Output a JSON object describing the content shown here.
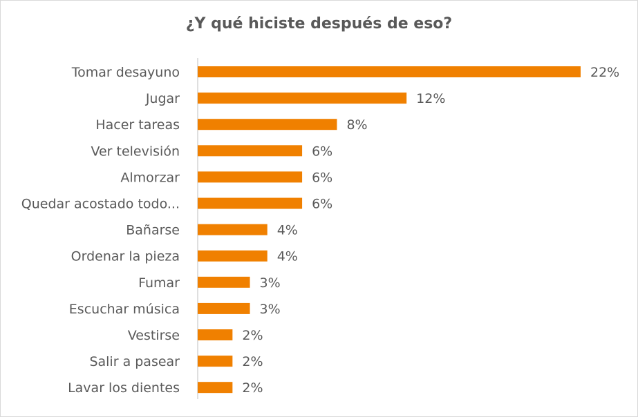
{
  "chart_data": {
    "type": "bar",
    "orientation": "horizontal",
    "title": "¿Y qué hiciste después de eso?",
    "categories": [
      "Tomar desayuno",
      "Jugar",
      "Hacer tareas",
      "Ver televisión",
      "Almorzar",
      "Quedar acostado todo...",
      "Bañarse",
      "Ordenar la pieza",
      "Fumar",
      "Escuchar música",
      "Vestirse",
      "Salir a pasear",
      "Lavar los dientes"
    ],
    "values": [
      22,
      12,
      8,
      6,
      6,
      6,
      4,
      4,
      3,
      3,
      2,
      2,
      2
    ],
    "value_labels": [
      "22%",
      "12%",
      "8%",
      "6%",
      "6%",
      "6%",
      "4%",
      "4%",
      "3%",
      "3%",
      "2%",
      "2%",
      "2%"
    ],
    "unit": "%",
    "xlim": [
      0,
      22
    ],
    "grid": false,
    "legend": "none",
    "bar_color": "#f08000"
  }
}
